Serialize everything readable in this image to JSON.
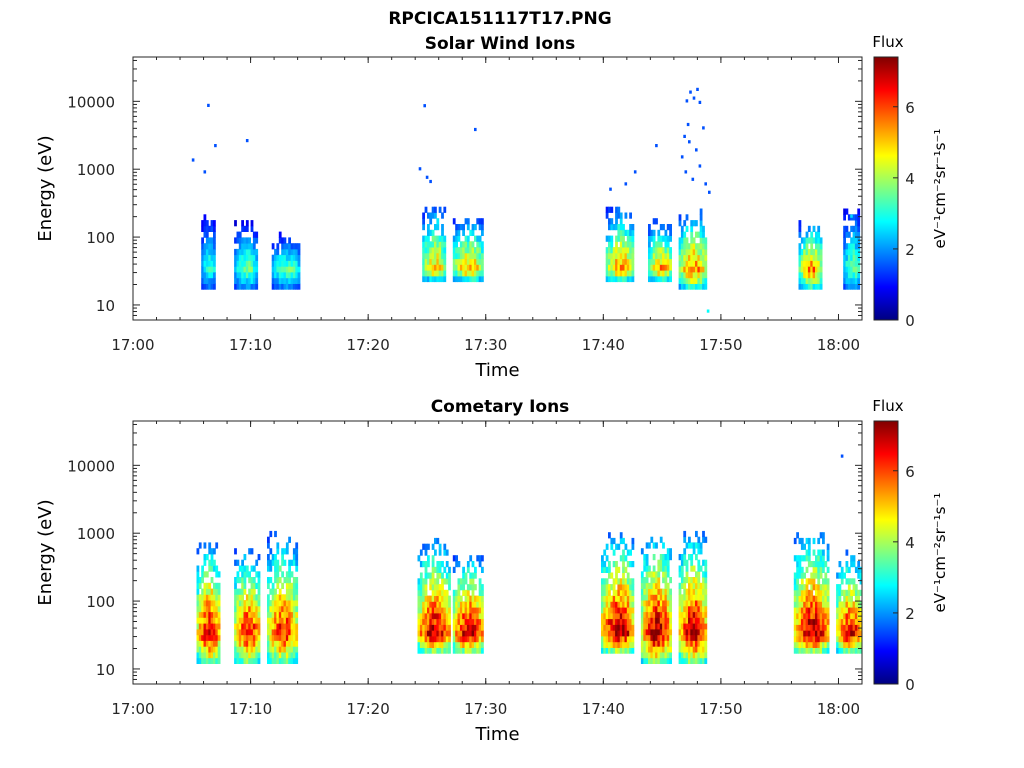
{
  "figure": {
    "title": "RPCICA151117T17.PNG"
  },
  "colormap": [
    "#000080",
    "#0000ff",
    "#0080ff",
    "#00ffff",
    "#80ff80",
    "#ffff00",
    "#ff8000",
    "#ff0000",
    "#800000"
  ],
  "chart_data": [
    {
      "type": "heatmap",
      "title": "Solar Wind Ions",
      "xlabel": "Time",
      "ylabel": "Energy (eV)",
      "x_range": [
        "17:00",
        "18:02"
      ],
      "x_ticks": [
        "17:00",
        "17:10",
        "17:20",
        "17:30",
        "17:40",
        "17:50",
        "18:00"
      ],
      "y_scale": "log",
      "y_range": [
        6,
        45000
      ],
      "y_ticks": [
        "10",
        "100",
        "1000",
        "10000"
      ],
      "colorbar": {
        "label": "Flux",
        "unit": "eV⁻¹cm⁻²sr⁻¹s⁻¹",
        "range": [
          0,
          7.4
        ],
        "ticks": [
          "0",
          "2",
          "4",
          "6"
        ]
      },
      "bursts": [
        {
          "start": "17:05.8",
          "end": "17:07.0",
          "e_min": 17,
          "e_max": 220,
          "peak": 3.0
        },
        {
          "start": "17:08.6",
          "end": "17:10.6",
          "e_min": 17,
          "e_max": 150,
          "peak": 3.5
        },
        {
          "start": "17:11.8",
          "end": "17:14.2",
          "e_min": 17,
          "e_max": 100,
          "peak": 3.4
        },
        {
          "start": "17:24.6",
          "end": "17:26.6",
          "e_min": 22,
          "e_max": 280,
          "peak": 5.0
        },
        {
          "start": "17:27.2",
          "end": "17:29.8",
          "e_min": 22,
          "e_max": 180,
          "peak": 5.2
        },
        {
          "start": "17:40.2",
          "end": "17:42.6",
          "e_min": 22,
          "e_max": 260,
          "peak": 5.3
        },
        {
          "start": "17:43.8",
          "end": "17:45.8",
          "e_min": 22,
          "e_max": 160,
          "peak": 5.3
        },
        {
          "start": "17:46.4",
          "end": "17:48.8",
          "e_min": 17,
          "e_max": 240,
          "peak": 5.5
        },
        {
          "start": "17:56.6",
          "end": "17:58.6",
          "e_min": 17,
          "e_max": 160,
          "peak": 5.4
        },
        {
          "start": "18:00.4",
          "end": "18:01.8",
          "e_min": 17,
          "e_max": 260,
          "peak": 3.5
        }
      ],
      "scatter": [
        {
          "t": "17:05.0",
          "e": 1350,
          "v": 1.5
        },
        {
          "t": "17:06.0",
          "e": 900,
          "v": 1.5
        },
        {
          "t": "17:06.3",
          "e": 8600,
          "v": 1.5
        },
        {
          "t": "17:06.9",
          "e": 2200,
          "v": 1.5
        },
        {
          "t": "17:09.6",
          "e": 2600,
          "v": 1.5
        },
        {
          "t": "17:24.3",
          "e": 1000,
          "v": 1.5
        },
        {
          "t": "17:24.7",
          "e": 8500,
          "v": 1.5
        },
        {
          "t": "17:24.9",
          "e": 750,
          "v": 1.5
        },
        {
          "t": "17:25.2",
          "e": 650,
          "v": 1.5
        },
        {
          "t": "17:29.0",
          "e": 3800,
          "v": 1.5
        },
        {
          "t": "17:40.5",
          "e": 500,
          "v": 1.5
        },
        {
          "t": "17:41.8",
          "e": 600,
          "v": 1.5
        },
        {
          "t": "17:42.6",
          "e": 900,
          "v": 1.5
        },
        {
          "t": "17:44.4",
          "e": 2200,
          "v": 1.5
        },
        {
          "t": "17:47.0",
          "e": 10000,
          "v": 1.5
        },
        {
          "t": "17:47.3",
          "e": 13500,
          "v": 1.5
        },
        {
          "t": "17:47.6",
          "e": 11000,
          "v": 1.5
        },
        {
          "t": "17:47.9",
          "e": 14800,
          "v": 1.5
        },
        {
          "t": "17:48.1",
          "e": 9500,
          "v": 1.5
        },
        {
          "t": "17:46.6",
          "e": 1500,
          "v": 1.5
        },
        {
          "t": "17:46.9",
          "e": 900,
          "v": 1.5
        },
        {
          "t": "17:47.2",
          "e": 2500,
          "v": 1.5
        },
        {
          "t": "17:47.5",
          "e": 700,
          "v": 1.5
        },
        {
          "t": "17:47.8",
          "e": 1900,
          "v": 1.5
        },
        {
          "t": "17:48.1",
          "e": 1100,
          "v": 1.5
        },
        {
          "t": "17:48.4",
          "e": 4000,
          "v": 1.5
        },
        {
          "t": "17:48.6",
          "e": 600,
          "v": 1.5
        },
        {
          "t": "17:48.9",
          "e": 450,
          "v": 1.5
        },
        {
          "t": "17:47.1",
          "e": 4500,
          "v": 1.5
        },
        {
          "t": "17:46.8",
          "e": 3000,
          "v": 1.5
        },
        {
          "t": "17:48.8",
          "e": 8,
          "v": 2.8
        },
        {
          "t": "18:01.0",
          "e": 200,
          "v": 2.5
        }
      ]
    },
    {
      "type": "heatmap",
      "title": "Cometary Ions",
      "xlabel": "Time",
      "ylabel": "Energy (eV)",
      "x_range": [
        "17:00",
        "18:02"
      ],
      "x_ticks": [
        "17:00",
        "17:10",
        "17:20",
        "17:30",
        "17:40",
        "17:50",
        "18:00"
      ],
      "y_scale": "log",
      "y_range": [
        6,
        45000
      ],
      "y_ticks": [
        "10",
        "100",
        "1000",
        "10000"
      ],
      "colorbar": {
        "label": "Flux",
        "unit": "eV⁻¹cm⁻²sr⁻¹s⁻¹",
        "range": [
          0,
          7.4
        ],
        "ticks": [
          "0",
          "2",
          "4",
          "6"
        ]
      },
      "bursts": [
        {
          "start": "17:05.4",
          "end": "17:07.4",
          "e_min": 12,
          "e_max": 650,
          "peak": 6.6
        },
        {
          "start": "17:08.6",
          "end": "17:10.8",
          "e_min": 12,
          "e_max": 550,
          "peak": 6.4
        },
        {
          "start": "17:11.4",
          "end": "17:14.0",
          "e_min": 12,
          "e_max": 900,
          "peak": 6.2
        },
        {
          "start": "17:24.2",
          "end": "17:27.0",
          "e_min": 17,
          "e_max": 750,
          "peak": 6.8
        },
        {
          "start": "17:27.2",
          "end": "17:29.8",
          "e_min": 17,
          "e_max": 450,
          "peak": 6.9
        },
        {
          "start": "17:39.8",
          "end": "17:42.6",
          "e_min": 17,
          "e_max": 950,
          "peak": 7.0
        },
        {
          "start": "17:43.2",
          "end": "17:45.8",
          "e_min": 12,
          "e_max": 950,
          "peak": 6.9
        },
        {
          "start": "17:46.4",
          "end": "17:48.8",
          "e_min": 12,
          "e_max": 1050,
          "peak": 6.8
        },
        {
          "start": "17:56.2",
          "end": "17:59.2",
          "e_min": 17,
          "e_max": 950,
          "peak": 7.0
        },
        {
          "start": "17:59.8",
          "end": "18:02.0",
          "e_min": 17,
          "e_max": 500,
          "peak": 6.5
        }
      ],
      "scatter": [
        {
          "t": "18:00.2",
          "e": 13500,
          "v": 1.5
        }
      ]
    }
  ]
}
